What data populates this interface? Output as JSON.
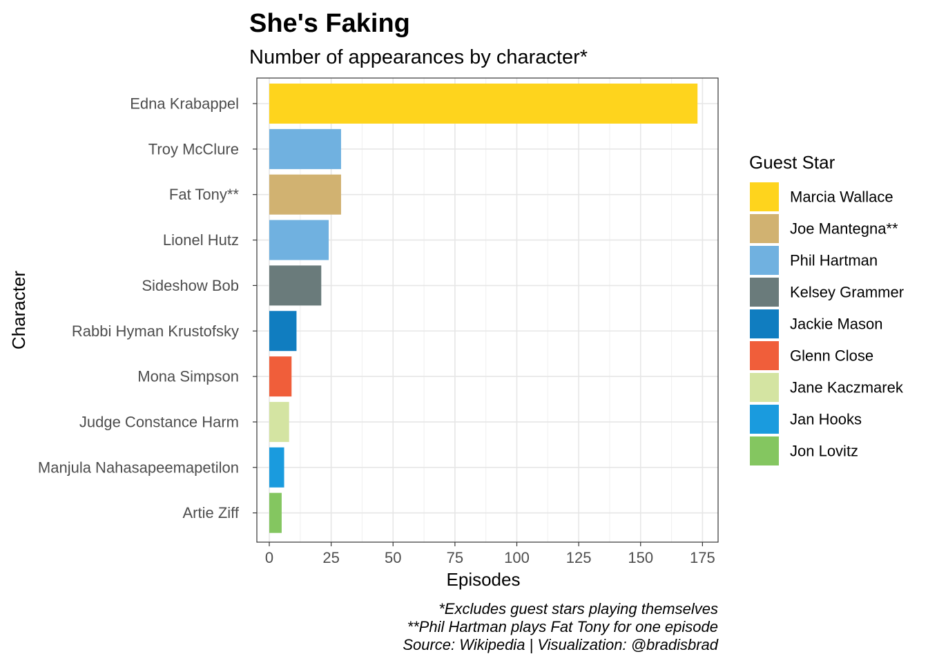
{
  "chart_data": {
    "type": "bar",
    "orientation": "horizontal",
    "title": "She's Faking",
    "subtitle": "Number of appearances by character*",
    "xlabel": "Episodes",
    "ylabel": "Character",
    "xlim": [
      -8,
      181
    ],
    "xticks": [
      0,
      25,
      50,
      75,
      100,
      125,
      150,
      175
    ],
    "grid": true,
    "categories": [
      "Edna Krabappel",
      "Troy McClure",
      "Fat Tony**",
      "Lionel Hutz",
      "Sideshow Bob",
      "Rabbi Hyman Krustofsky",
      "Mona Simpson",
      "Judge Constance Harm",
      "Manjula Nahasapeemapetilon",
      "Artie Ziff"
    ],
    "values": [
      173,
      29,
      29,
      24,
      21,
      11,
      9,
      8,
      6,
      5
    ],
    "guest_star": [
      "Marcia Wallace",
      "Phil Hartman",
      "Joe Mantegna**",
      "Phil Hartman",
      "Kelsey Grammer",
      "Jackie Mason",
      "Glenn Close",
      "Jane Kaczmarek",
      "Jan Hooks",
      "Jon Lovitz"
    ],
    "legend": {
      "title": "Guest Star",
      "position": "right",
      "items": [
        {
          "name": "Marcia Wallace",
          "color": "#FED41D"
        },
        {
          "name": "Joe Mantegna**",
          "color": "#D1B271"
        },
        {
          "name": "Phil Hartman",
          "color": "#70B1E0"
        },
        {
          "name": "Kelsey Grammer",
          "color": "#6A7B7B"
        },
        {
          "name": "Jackie Mason",
          "color": "#107DC0"
        },
        {
          "name": "Glenn Close",
          "color": "#F05E3A"
        },
        {
          "name": "Jane Kaczmarek",
          "color": "#D4E4A2"
        },
        {
          "name": "Jan Hooks",
          "color": "#1A9BDE"
        },
        {
          "name": "Jon Lovitz",
          "color": "#84C660"
        }
      ]
    },
    "caption": [
      "*Excludes guest stars playing themselves",
      "**Phil Hartman plays Fat Tony for one episode",
      "Source: Wikipedia | Visualization: @bradisbrad"
    ]
  }
}
